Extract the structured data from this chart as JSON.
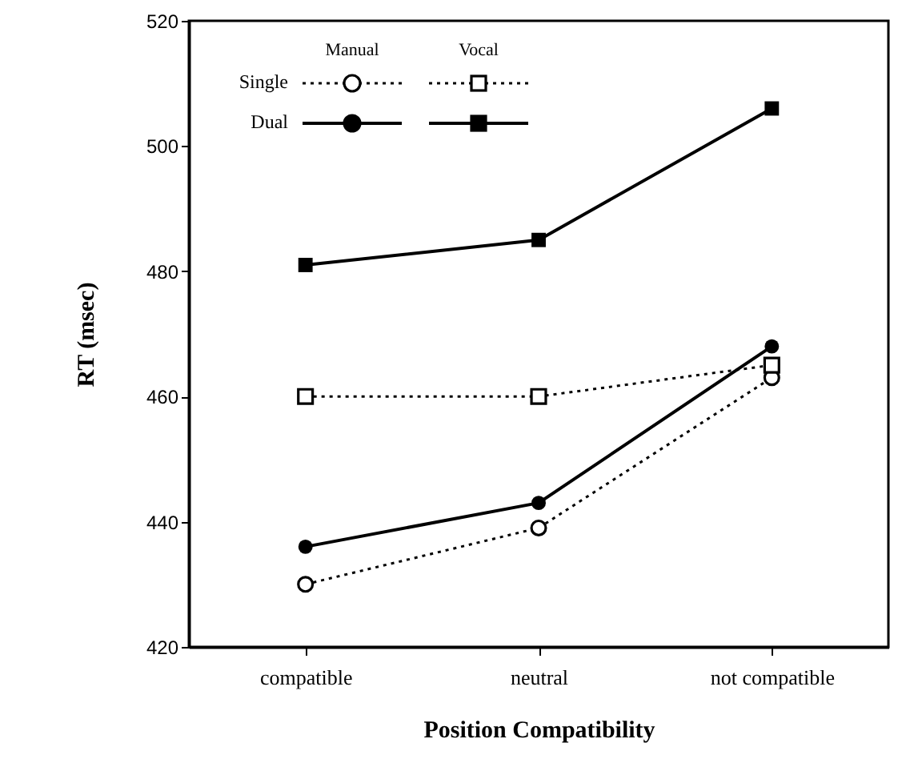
{
  "chart_data": {
    "type": "line",
    "xlabel": "Position  Compatibility",
    "ylabel": "RT  (msec)",
    "categories": [
      "compatible",
      "neutral",
      "not compatible"
    ],
    "series": [
      {
        "color": "#000000",
        "marker": "circle",
        "line_style": "dotted",
        "values": [
          430,
          439,
          463
        ]
      },
      {
        "color": "#000000",
        "marker": "circle",
        "line_style": "solid",
        "values": [
          436,
          443,
          468
        ]
      },
      {
        "color": "#000000",
        "marker": "square",
        "line_style": "dotted",
        "values": [
          460,
          460,
          465
        ]
      },
      {
        "color": "#000000",
        "marker": "square",
        "line_style": "solid",
        "values": [
          481,
          485,
          506
        ]
      }
    ],
    "annotations": [
      "Manual",
      "Vocal",
      "Single",
      "Dual"
    ],
    "grid": false,
    "ylim": [
      420,
      520
    ],
    "yticks": [
      420,
      440,
      460,
      480,
      500,
      520
    ]
  }
}
